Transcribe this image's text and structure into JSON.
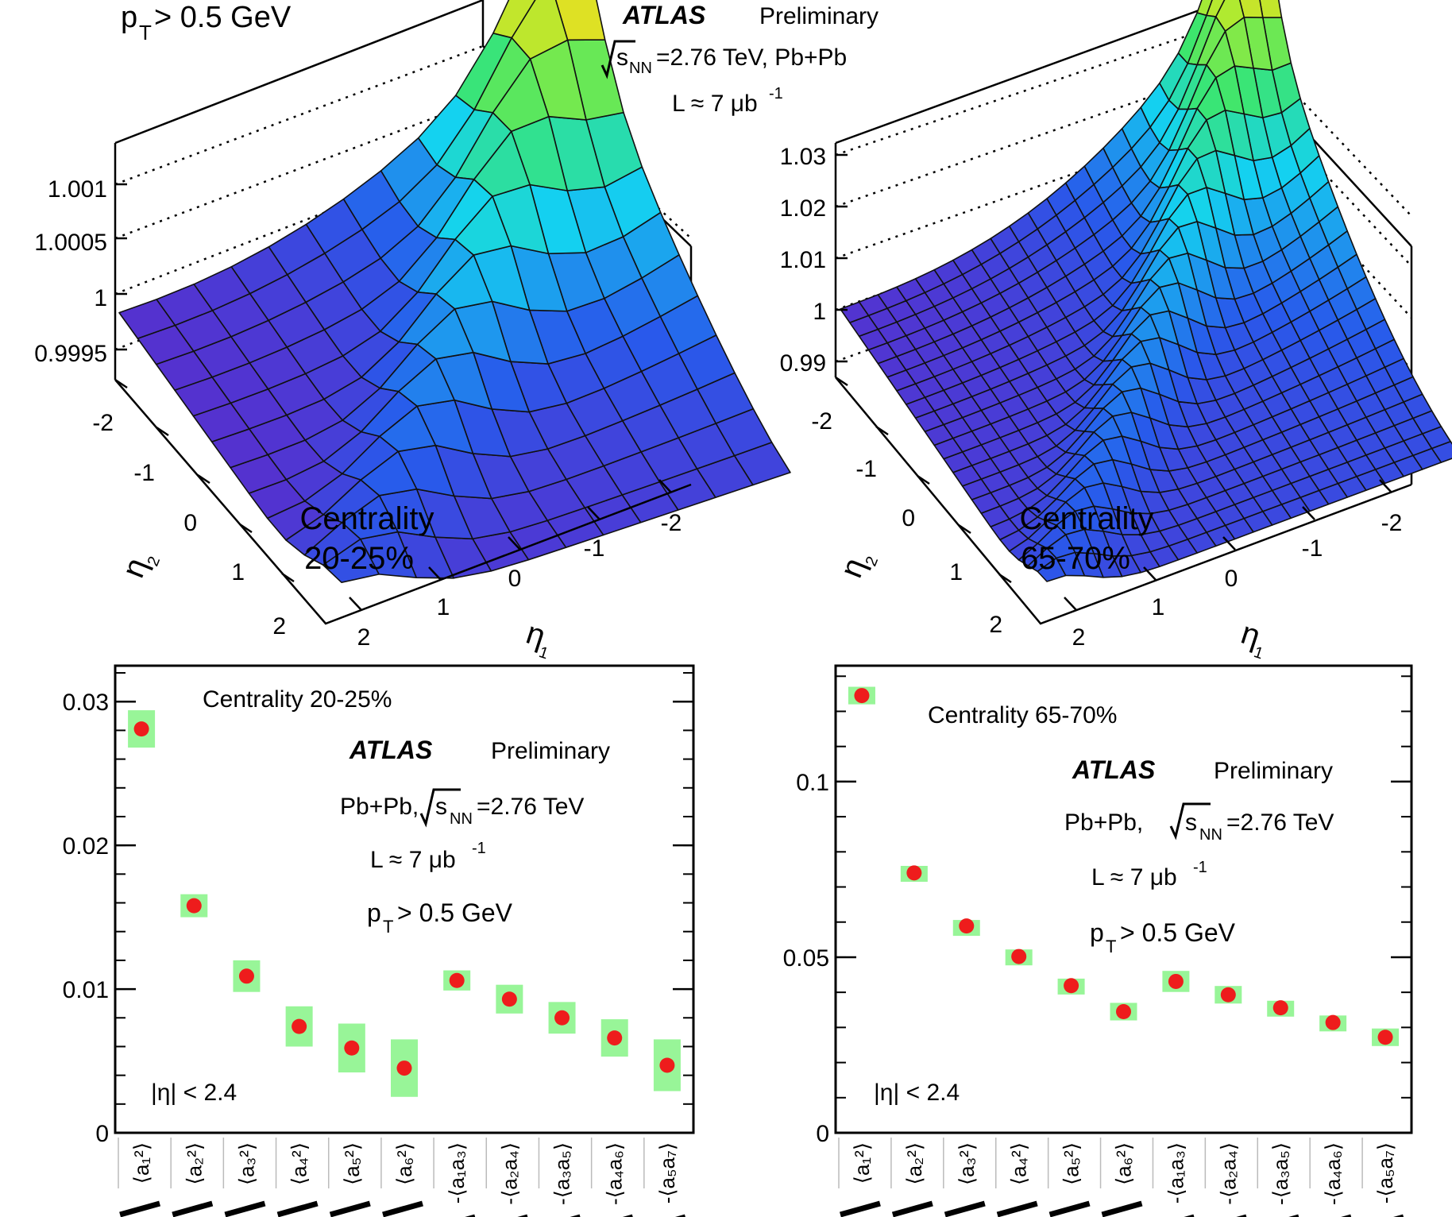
{
  "colors": {
    "marker": "#ee1c1c",
    "band": "#98f598",
    "axis": "#000000"
  },
  "chart_data": [
    {
      "type": "surface",
      "panel": "top-left",
      "title": "p_T > 0.5 GeV",
      "pt_main": "p",
      "pt_sub": "T",
      "pt_rest": " > 0.5 GeV",
      "atlas_label": "ATLAS",
      "preliminary_label": "Preliminary",
      "energy_label": "s",
      "energy_sub": "NN",
      "energy_rest": "=2.76 TeV, Pb+Pb",
      "lumi_label": "L ≈ 7 μb",
      "lumi_sup": "-1",
      "centrality_line1": "Centrality",
      "centrality_line2": "20-25%",
      "z_ticks": [
        "0.9995",
        "1",
        "1.0005",
        "1.001"
      ],
      "zlim": [
        0.99935,
        1.0016
      ],
      "eta2_ticks": [
        "-2",
        "-1",
        "0",
        "1",
        "2"
      ],
      "eta1_ticks": [
        "2",
        "1",
        "0",
        "-1",
        "-2"
      ],
      "eta1_label": "η",
      "eta1_sub": "1",
      "eta2_label": "η",
      "eta2_sub": "2"
    },
    {
      "type": "surface",
      "panel": "top-right",
      "centrality_line1": "Centrality",
      "centrality_line2": "65-70%",
      "z_ticks": [
        "0.99",
        "1",
        "1.01",
        "1.02",
        "1.03"
      ],
      "zlim": [
        0.988,
        1.035
      ],
      "eta2_ticks": [
        "-2",
        "-1",
        "0",
        "1",
        "2"
      ],
      "eta1_ticks": [
        "2",
        "1",
        "0",
        "-1",
        "-2"
      ],
      "eta1_label": "η",
      "eta1_sub": "1",
      "eta2_label": "η",
      "eta2_sub": "2"
    },
    {
      "type": "scatter",
      "panel": "bottom-left",
      "centrality": "Centrality 20-25%",
      "atlas_label": "ATLAS",
      "preliminary_label": "Preliminary",
      "energy_prefix": "Pb+Pb,",
      "energy_label": "s",
      "energy_sub": "NN",
      "energy_rest": "=2.76 TeV",
      "lumi_label": "L ≈ 7 μb",
      "lumi_sup": "-1",
      "pt_main": "p",
      "pt_sub": "T",
      "pt_rest": " > 0.5 GeV",
      "eta_cut": "|η| < 2.4",
      "ylim": [
        0,
        0.0325
      ],
      "y_ticks": [
        {
          "value": 0,
          "label": "0"
        },
        {
          "value": 0.01,
          "label": "0.01"
        },
        {
          "value": 0.02,
          "label": "0.02"
        },
        {
          "value": 0.03,
          "label": "0.03"
        }
      ],
      "categories": [
        "⟨a₁²⟩",
        "⟨a₂²⟩",
        "⟨a₃²⟩",
        "⟨a₄²⟩",
        "⟨a₅²⟩",
        "⟨a₆²⟩",
        "-⟨a₁a₃⟩",
        "-⟨a₂a₄⟩",
        "-⟨a₃a₅⟩",
        "-⟨a₄a₆⟩",
        "-⟨a₅a₇⟩"
      ],
      "values": [
        0.0281,
        0.0158,
        0.0109,
        0.0074,
        0.0059,
        0.0045,
        0.0106,
        0.0093,
        0.008,
        0.0066,
        0.0047
      ],
      "sys_err": [
        0.0013,
        0.0008,
        0.0011,
        0.0014,
        0.0017,
        0.002,
        0.0007,
        0.001,
        0.0011,
        0.0013,
        0.0018
      ]
    },
    {
      "type": "scatter",
      "panel": "bottom-right",
      "centrality": "Centrality 65-70%",
      "atlas_label": "ATLAS",
      "preliminary_label": "Preliminary",
      "energy_prefix": "Pb+Pb,",
      "energy_label": "s",
      "energy_sub": "NN",
      "energy_rest": "=2.76 TeV",
      "lumi_label": "L ≈ 7 μb",
      "lumi_sup": "-1",
      "pt_main": "p",
      "pt_sub": "T",
      "pt_rest": " > 0.5 GeV",
      "eta_cut": "|η| < 2.4",
      "ylim": [
        0,
        0.133
      ],
      "y_ticks": [
        {
          "value": 0,
          "label": "0"
        },
        {
          "value": 0.05,
          "label": "0.05"
        },
        {
          "value": 0.1,
          "label": "0.1"
        }
      ],
      "categories": [
        "⟨a₁²⟩",
        "⟨a₂²⟩",
        "⟨a₃²⟩",
        "⟨a₄²⟩",
        "⟨a₅²⟩",
        "⟨a₆²⟩",
        "-⟨a₁a₃⟩",
        "-⟨a₂a₄⟩",
        "-⟨a₃a₅⟩",
        "-⟨a₄a₆⟩",
        "-⟨a₅a₇⟩"
      ],
      "values": [
        0.1245,
        0.074,
        0.0589,
        0.0502,
        0.0419,
        0.0345,
        0.0431,
        0.0393,
        0.0356,
        0.0314,
        0.0272
      ],
      "sys_err": [
        0.0025,
        0.002,
        0.0017,
        0.002,
        0.002,
        0.0025,
        0.003,
        0.0025,
        0.002,
        0.002,
        0.0025
      ]
    }
  ]
}
